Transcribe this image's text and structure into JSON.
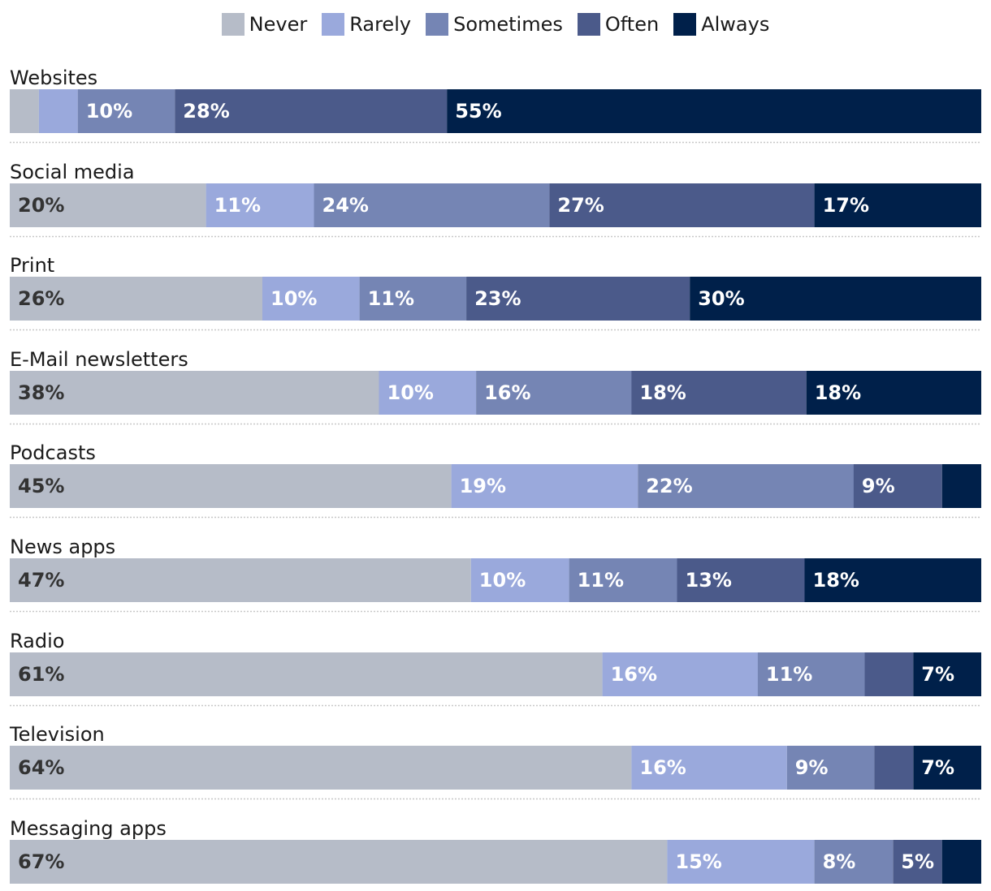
{
  "chart_data": {
    "type": "bar",
    "orientation": "horizontal",
    "stacked": "100%",
    "title": "",
    "xlabel": "",
    "ylabel": "",
    "xlim": [
      0,
      100
    ],
    "legend_position": "top-center",
    "colors": [
      "#b6bcc8",
      "#9aa9dc",
      "#7585b4",
      "#4b5a8a",
      "#00204a"
    ],
    "label_colors": [
      "#333333",
      "#ffffff",
      "#ffffff",
      "#ffffff",
      "#ffffff"
    ],
    "legend": [
      "Never",
      "Rarely",
      "Sometimes",
      "Often",
      "Always"
    ],
    "categories": [
      "Websites",
      "Social media",
      "Print",
      "E-Mail newsletters",
      "Podcasts",
      "News apps",
      "Radio",
      "Television",
      "Messaging apps"
    ],
    "series": [
      {
        "name": "Never",
        "values": [
          3,
          20,
          26,
          38,
          45,
          47,
          61,
          64,
          67
        ]
      },
      {
        "name": "Rarely",
        "values": [
          4,
          11,
          10,
          10,
          19,
          10,
          16,
          16,
          15
        ]
      },
      {
        "name": "Sometimes",
        "values": [
          10,
          24,
          11,
          16,
          22,
          11,
          11,
          9,
          8
        ]
      },
      {
        "name": "Often",
        "values": [
          28,
          27,
          23,
          18,
          9,
          13,
          5,
          4,
          5
        ]
      },
      {
        "name": "Always",
        "values": [
          55,
          17,
          30,
          18,
          4,
          18,
          7,
          7,
          4
        ]
      }
    ],
    "data_labels": [
      [
        "",
        "",
        "10%",
        "28%",
        "55%"
      ],
      [
        "20%",
        "11%",
        "24%",
        "27%",
        "17%"
      ],
      [
        "26%",
        "10%",
        "11%",
        "23%",
        "30%"
      ],
      [
        "38%",
        "10%",
        "16%",
        "18%",
        "18%"
      ],
      [
        "45%",
        "19%",
        "22%",
        "9%",
        ""
      ],
      [
        "47%",
        "10%",
        "11%",
        "13%",
        "18%"
      ],
      [
        "61%",
        "16%",
        "11%",
        "",
        "7%"
      ],
      [
        "64%",
        "16%",
        "9%",
        "",
        "7%"
      ],
      [
        "67%",
        "15%",
        "8%",
        "5%",
        ""
      ]
    ]
  }
}
